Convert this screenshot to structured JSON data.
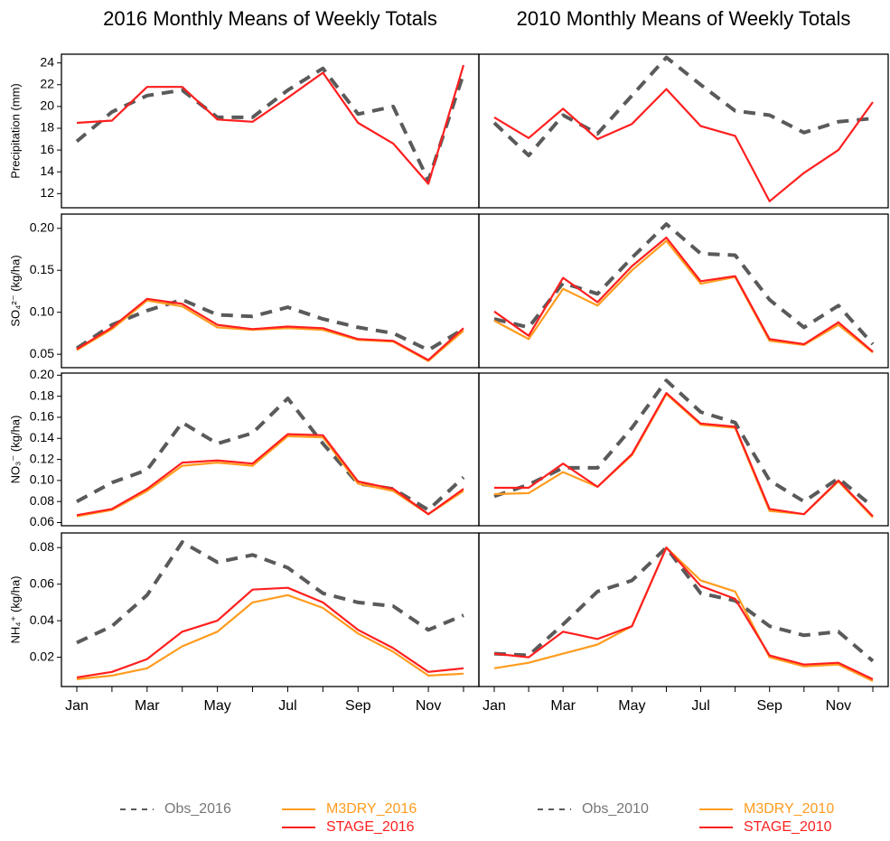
{
  "chart_data": [
    {
      "type": "line",
      "title": "2016 Monthly Means of Weekly Totals",
      "ylabel": "Precipitation (mm)",
      "ylim": [
        10.7,
        24.8
      ],
      "yticks": [
        12,
        14,
        16,
        18,
        20,
        22,
        24
      ],
      "series": [
        {
          "color": "#5a5a5a",
          "dashed": true,
          "values": [
            16.8,
            19.5,
            21.0,
            21.5,
            19.0,
            19.0,
            21.5,
            23.5,
            19.3,
            20.0,
            13.2,
            23.0
          ]
        },
        {
          "color": "#ff1f1f",
          "dashed": false,
          "values": [
            18.5,
            18.7,
            21.8,
            21.8,
            18.8,
            18.6,
            20.8,
            23.1,
            18.5,
            16.6,
            12.9,
            23.8
          ]
        }
      ]
    },
    {
      "type": "line",
      "title": "2010 Monthly Means of Weekly Totals",
      "ylim": [
        10.7,
        24.8
      ],
      "series": [
        {
          "color": "#5a5a5a",
          "dashed": true,
          "values": [
            18.5,
            15.5,
            19.2,
            17.5,
            21.0,
            24.5,
            22.0,
            19.6,
            19.2,
            17.6,
            18.6,
            18.9
          ]
        },
        {
          "color": "#ff1f1f",
          "dashed": false,
          "values": [
            19.0,
            17.1,
            19.8,
            17.0,
            18.4,
            21.6,
            18.2,
            17.3,
            11.3,
            13.9,
            16.0,
            20.4
          ]
        }
      ]
    },
    {
      "type": "line",
      "ylabel": "SO₄²⁻ (kg/ha)",
      "ylim": [
        0.034,
        0.217
      ],
      "yticks": [
        0.05,
        {
          "value": 0.1,
          "label": "0.10"
        },
        0.15,
        {
          "value": 0.2,
          "label": "0.20"
        }
      ],
      "series": [
        {
          "color": "#5a5a5a",
          "dashed": true,
          "values": [
            0.057,
            0.085,
            0.102,
            0.115,
            0.097,
            0.095,
            0.106,
            0.092,
            0.082,
            0.075,
            0.055,
            0.08
          ]
        },
        {
          "color": "#ff9c1f",
          "dashed": false,
          "values": [
            0.055,
            0.08,
            0.114,
            0.107,
            0.082,
            0.079,
            0.081,
            0.079,
            0.067,
            0.065,
            0.042,
            0.078
          ]
        },
        {
          "color": "#ff1f1f",
          "dashed": false,
          "values": [
            0.056,
            0.082,
            0.116,
            0.11,
            0.085,
            0.08,
            0.083,
            0.081,
            0.068,
            0.066,
            0.043,
            0.081
          ]
        }
      ]
    },
    {
      "type": "line",
      "ylim": [
        0.034,
        0.217
      ],
      "series": [
        {
          "color": "#5a5a5a",
          "dashed": true,
          "values": [
            0.092,
            0.082,
            0.135,
            0.122,
            0.165,
            0.205,
            0.17,
            0.168,
            0.115,
            0.082,
            0.108,
            0.062
          ]
        },
        {
          "color": "#ff9c1f",
          "dashed": false,
          "values": [
            0.09,
            0.068,
            0.128,
            0.108,
            0.15,
            0.185,
            0.134,
            0.142,
            0.066,
            0.061,
            0.085,
            0.052
          ]
        },
        {
          "color": "#ff1f1f",
          "dashed": false,
          "values": [
            0.101,
            0.072,
            0.141,
            0.112,
            0.155,
            0.189,
            0.137,
            0.143,
            0.068,
            0.062,
            0.088,
            0.053
          ]
        }
      ]
    },
    {
      "type": "line",
      "ylabel": "NO₃⁻ (kg/ha)",
      "ylim": [
        0.057,
        0.202
      ],
      "yticks": [
        0.06,
        0.08,
        {
          "value": 0.1,
          "label": "0.10"
        },
        0.12,
        0.14,
        0.16,
        0.18,
        {
          "value": 0.2,
          "label": "0.20"
        }
      ],
      "series": [
        {
          "color": "#5a5a5a",
          "dashed": true,
          "values": [
            0.08,
            0.098,
            0.11,
            0.155,
            0.135,
            0.145,
            0.178,
            0.135,
            0.097,
            0.092,
            0.072,
            0.103
          ]
        },
        {
          "color": "#ff9c1f",
          "dashed": false,
          "values": [
            0.066,
            0.072,
            0.09,
            0.114,
            0.117,
            0.114,
            0.142,
            0.141,
            0.097,
            0.09,
            0.068,
            0.09
          ]
        },
        {
          "color": "#ff1f1f",
          "dashed": false,
          "values": [
            0.067,
            0.073,
            0.092,
            0.117,
            0.119,
            0.116,
            0.144,
            0.143,
            0.099,
            0.092,
            0.068,
            0.092
          ]
        }
      ]
    },
    {
      "type": "line",
      "ylim": [
        0.057,
        0.202
      ],
      "series": [
        {
          "color": "#5a5a5a",
          "dashed": true,
          "values": [
            0.085,
            0.096,
            0.112,
            0.112,
            0.15,
            0.195,
            0.165,
            0.155,
            0.1,
            0.08,
            0.102,
            0.075
          ]
        },
        {
          "color": "#ff9c1f",
          "dashed": false,
          "values": [
            0.087,
            0.088,
            0.108,
            0.094,
            0.124,
            0.182,
            0.153,
            0.15,
            0.071,
            0.068,
            0.099,
            0.065
          ]
        },
        {
          "color": "#ff1f1f",
          "dashed": false,
          "values": [
            0.093,
            0.093,
            0.116,
            0.094,
            0.125,
            0.183,
            0.154,
            0.151,
            0.073,
            0.068,
            0.1,
            0.066
          ]
        }
      ]
    },
    {
      "type": "line",
      "ylabel": "NH₄⁺ (kg/ha)",
      "ylim": [
        0.004,
        0.088
      ],
      "yticks": [
        0.02,
        0.04,
        0.06,
        0.08
      ],
      "categories": [
        "Jan",
        null,
        "Mar",
        null,
        "May",
        null,
        "Jul",
        null,
        "Sep",
        null,
        "Nov",
        null
      ],
      "series": [
        {
          "name": "Obs_2016",
          "color": "#5a5a5a",
          "dashed": true,
          "values": [
            0.028,
            0.037,
            0.054,
            0.083,
            0.072,
            0.076,
            0.069,
            0.055,
            0.05,
            0.048,
            0.035,
            0.043
          ]
        },
        {
          "name": "M3DRY_2016",
          "color": "#ff9c1f",
          "dashed": false,
          "values": [
            0.008,
            0.01,
            0.014,
            0.026,
            0.034,
            0.05,
            0.054,
            0.047,
            0.033,
            0.023,
            0.01,
            0.011
          ]
        },
        {
          "name": "STAGE_2016",
          "color": "#ff1f1f",
          "dashed": false,
          "values": [
            0.009,
            0.012,
            0.019,
            0.034,
            0.04,
            0.057,
            0.058,
            0.05,
            0.035,
            0.025,
            0.012,
            0.014
          ]
        }
      ]
    },
    {
      "type": "line",
      "ylim": [
        0.004,
        0.088
      ],
      "categories": [
        "Jan",
        null,
        "Mar",
        null,
        "May",
        null,
        "Jul",
        null,
        "Sep",
        null,
        "Nov",
        null
      ],
      "series": [
        {
          "name": "Obs_2010",
          "color": "#5a5a5a",
          "dashed": true,
          "values": [
            0.022,
            0.021,
            0.038,
            0.056,
            0.062,
            0.08,
            0.055,
            0.051,
            0.037,
            0.032,
            0.034,
            0.018
          ]
        },
        {
          "name": "M3DRY_2010",
          "color": "#ff9c1f",
          "dashed": false,
          "values": [
            0.014,
            0.017,
            0.022,
            0.027,
            0.037,
            0.08,
            0.062,
            0.056,
            0.02,
            0.015,
            0.016,
            0.007
          ]
        },
        {
          "name": "STAGE_2010",
          "color": "#ff1f1f",
          "dashed": false,
          "values": [
            0.022,
            0.02,
            0.034,
            0.03,
            0.037,
            0.08,
            0.059,
            0.052,
            0.021,
            0.016,
            0.017,
            0.008
          ]
        }
      ]
    }
  ]
}
